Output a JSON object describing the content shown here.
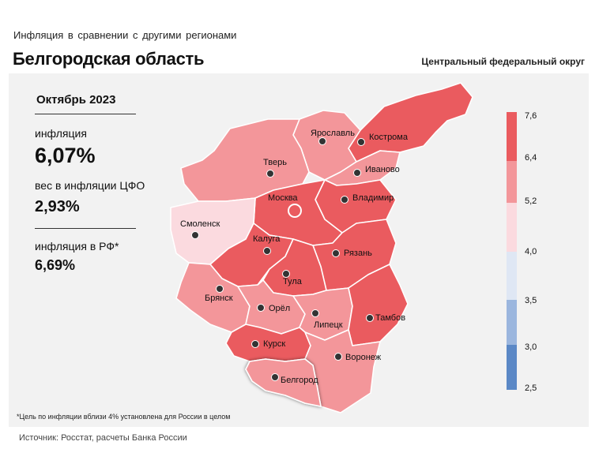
{
  "header": {
    "subtitle": "Инфляция  в сравнении  с другими  регионами",
    "title": "Белгородская область",
    "district": "Центральный федеральный округ"
  },
  "info": {
    "period": "Октябрь 2023",
    "inflation_label": "инфляция",
    "inflation_value": "6,07%",
    "weight_label": "вес в инфляции  ЦФО",
    "weight_value": "2,93%",
    "rf_label": "инфляция  в РФ*",
    "rf_value": "6,69%"
  },
  "footnote": "*Цель по инфляции вблизи 4% установлена для России в целом",
  "source": "Источник: Росстат, расчеты Банка России",
  "legend": {
    "ticks": [
      "7,6",
      "6,4",
      "5,2",
      "4,0",
      "3,5",
      "3,0",
      "2,5"
    ],
    "colors": [
      "#ea5b5f",
      "#f3969a",
      "#fbdadf",
      "#dfe7f4",
      "#9bb6de",
      "#5b88c6"
    ]
  },
  "colors": {
    "dark_red": "#ea5b5f",
    "mid_red": "#f3969a",
    "light_pink": "#fbdadf",
    "panel_bg": "#f2f2f2"
  },
  "regions": {
    "yaroslavl": "Ярославль",
    "kostroma": "Кострома",
    "tver": "Тверь",
    "ivanovo": "Иваново",
    "moskva": "Москва",
    "vladimir": "Владимир",
    "smolensk": "Смоленск",
    "kaluga": "Калуга",
    "ryazan": "Рязань",
    "tula": "Тула",
    "bryansk": "Брянск",
    "orel": "Орёл",
    "lipetsk": "Липецк",
    "tambov": "Тамбов",
    "kursk": "Курск",
    "voronezh": "Воронеж",
    "belgorod": "Белгород"
  }
}
